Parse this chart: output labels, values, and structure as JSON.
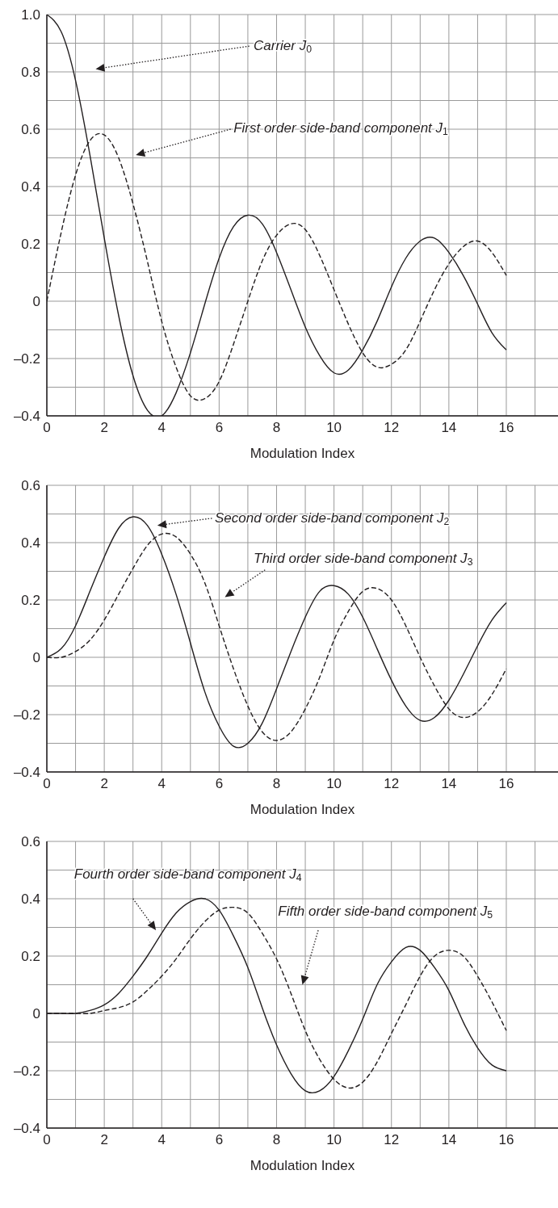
{
  "chart_data": [
    {
      "type": "line",
      "xlabel": "Modulation Index",
      "x": [
        0,
        0.5,
        1,
        1.5,
        2,
        2.5,
        3,
        3.5,
        4,
        4.5,
        5,
        5.5,
        6,
        6.5,
        7,
        7.5,
        8,
        8.5,
        9,
        9.5,
        10,
        10.5,
        11,
        11.5,
        12,
        12.5,
        13,
        13.5,
        14,
        14.5,
        15,
        15.5,
        16
      ],
      "series": [
        {
          "color": "#231f20",
          "line_style": "solid",
          "values": [
            1,
            0.94,
            0.77,
            0.51,
            0.22,
            -0.05,
            -0.26,
            -0.38,
            -0.4,
            -0.32,
            -0.18,
            -0.01,
            0.15,
            0.26,
            0.3,
            0.27,
            0.17,
            0.04,
            -0.09,
            -0.19,
            -0.25,
            -0.24,
            -0.17,
            -0.07,
            0.05,
            0.15,
            0.21,
            0.22,
            0.17,
            0.09,
            -0.01,
            -0.11,
            -0.17
          ]
        },
        {
          "color": "#231f20",
          "line_style": "dashed",
          "values": [
            0,
            0.24,
            0.44,
            0.56,
            0.58,
            0.5,
            0.34,
            0.14,
            -0.07,
            -0.23,
            -0.33,
            -0.34,
            -0.28,
            -0.15,
            0,
            0.14,
            0.23,
            0.27,
            0.25,
            0.16,
            0.04,
            -0.08,
            -0.18,
            -0.23,
            -0.22,
            -0.17,
            -0.07,
            0.04,
            0.13,
            0.19,
            0.21,
            0.17,
            0.09
          ]
        }
      ],
      "annotations": [
        "Carrier J$_{0}$",
        "First order side-band component J$_{1}$"
      ],
      "xlim": [
        0,
        17.8
      ],
      "xticks": [
        0,
        {
          "value": 1,
          "label": null
        },
        2,
        {
          "value": 3,
          "label": null
        },
        4,
        {
          "value": 5,
          "label": null
        },
        6,
        {
          "value": 7,
          "label": null
        },
        8,
        {
          "value": 9,
          "label": null
        },
        10,
        {
          "value": 11,
          "label": null
        },
        12,
        {
          "value": 13,
          "label": null
        },
        14,
        {
          "value": 15,
          "label": null
        },
        16,
        {
          "value": 17,
          "label": null
        }
      ],
      "ylim": [
        -0.4,
        1
      ],
      "yticks": [
        {
          "value": -0.4,
          "label": "–0.4"
        },
        {
          "value": -0.3,
          "label": null
        },
        {
          "value": -0.2,
          "label": "–0.2"
        },
        {
          "value": -0.1,
          "label": null
        },
        0,
        {
          "value": 0.1,
          "label": null
        },
        0.2,
        {
          "value": 0.3,
          "label": null
        },
        0.4,
        {
          "value": 0.5,
          "label": null
        },
        0.6,
        {
          "value": 0.7,
          "label": null
        },
        0.8,
        {
          "value": 0.9,
          "label": null
        },
        {
          "value": 1,
          "label": "1.0"
        }
      ],
      "grid": true
    },
    {
      "type": "line",
      "xlabel": "Modulation Index",
      "x": [
        0,
        0.5,
        1,
        1.5,
        2,
        2.5,
        3,
        3.5,
        4,
        4.5,
        5,
        5.5,
        6,
        6.5,
        7,
        7.5,
        8,
        8.5,
        9,
        9.5,
        10,
        10.5,
        11,
        11.5,
        12,
        12.5,
        13,
        13.5,
        14,
        14.5,
        15,
        15.5,
        16
      ],
      "series": [
        {
          "color": "#231f20",
          "line_style": "solid",
          "values": [
            0,
            0.03,
            0.11,
            0.23,
            0.35,
            0.45,
            0.49,
            0.46,
            0.36,
            0.22,
            0.05,
            -0.12,
            -0.24,
            -0.31,
            -0.3,
            -0.23,
            -0.11,
            0.02,
            0.14,
            0.23,
            0.25,
            0.22,
            0.14,
            0.03,
            -0.08,
            -0.17,
            -0.22,
            -0.21,
            -0.15,
            -0.06,
            0.04,
            0.13,
            0.19
          ]
        },
        {
          "color": "#231f20",
          "line_style": "dashed",
          "values": [
            0,
            0,
            0.02,
            0.06,
            0.13,
            0.22,
            0.31,
            0.39,
            0.43,
            0.42,
            0.36,
            0.26,
            0.11,
            -0.04,
            -0.17,
            -0.26,
            -0.29,
            -0.26,
            -0.18,
            -0.07,
            0.06,
            0.16,
            0.23,
            0.24,
            0.2,
            0.11,
            0,
            -0.1,
            -0.18,
            -0.21,
            -0.19,
            -0.13,
            -0.04
          ]
        }
      ],
      "annotations": [
        "Second order side-band component J$_{2}$",
        "Third order side-band component J$_{3}$"
      ],
      "xlim": [
        0,
        17.8
      ],
      "xticks": [
        0,
        {
          "value": 1,
          "label": null
        },
        2,
        {
          "value": 3,
          "label": null
        },
        4,
        {
          "value": 5,
          "label": null
        },
        6,
        {
          "value": 7,
          "label": null
        },
        8,
        {
          "value": 9,
          "label": null
        },
        10,
        {
          "value": 11,
          "label": null
        },
        12,
        {
          "value": 13,
          "label": null
        },
        14,
        {
          "value": 15,
          "label": null
        },
        16,
        {
          "value": 17,
          "label": null
        }
      ],
      "ylim": [
        -0.4,
        0.6
      ],
      "yticks": [
        {
          "value": -0.4,
          "label": "–0.4"
        },
        {
          "value": -0.3,
          "label": null
        },
        {
          "value": -0.2,
          "label": "–0.2"
        },
        {
          "value": -0.1,
          "label": null
        },
        0,
        {
          "value": 0.1,
          "label": null
        },
        0.2,
        {
          "value": 0.3,
          "label": null
        },
        0.4,
        {
          "value": 0.5,
          "label": null
        },
        0.6
      ],
      "grid": true
    },
    {
      "type": "line",
      "xlabel": "Modulation Index",
      "x": [
        0,
        0.5,
        1,
        1.5,
        2,
        2.5,
        3,
        3.5,
        4,
        4.5,
        5,
        5.5,
        6,
        6.5,
        7,
        7.5,
        8,
        8.5,
        9,
        9.5,
        10,
        10.5,
        11,
        11.5,
        12,
        12.5,
        13,
        13.5,
        14,
        14.5,
        15,
        15.5,
        16
      ],
      "series": [
        {
          "color": "#231f20",
          "line_style": "solid",
          "values": [
            0,
            0,
            0,
            0.01,
            0.03,
            0.07,
            0.13,
            0.2,
            0.28,
            0.35,
            0.39,
            0.4,
            0.36,
            0.27,
            0.16,
            0.02,
            -0.11,
            -0.21,
            -0.27,
            -0.27,
            -0.22,
            -0.13,
            -0.02,
            0.1,
            0.18,
            0.23,
            0.22,
            0.16,
            0.08,
            -0.03,
            -0.12,
            -0.18,
            -0.2
          ]
        },
        {
          "color": "#231f20",
          "line_style": "dashed",
          "values": [
            0,
            0,
            0,
            0,
            0.01,
            0.02,
            0.04,
            0.08,
            0.13,
            0.19,
            0.26,
            0.32,
            0.36,
            0.37,
            0.35,
            0.28,
            0.19,
            0.07,
            -0.06,
            -0.16,
            -0.23,
            -0.26,
            -0.24,
            -0.17,
            -0.07,
            0.03,
            0.13,
            0.2,
            0.22,
            0.2,
            0.13,
            0.04,
            -0.06
          ]
        }
      ],
      "annotations": [
        "Fourth order side-band component J$_{4}$",
        "Fifth order side-band component J$_{5}$"
      ],
      "xlim": [
        0,
        17.8
      ],
      "xticks": [
        0,
        {
          "value": 1,
          "label": null
        },
        2,
        {
          "value": 3,
          "label": null
        },
        4,
        {
          "value": 5,
          "label": null
        },
        6,
        {
          "value": 7,
          "label": null
        },
        8,
        {
          "value": 9,
          "label": null
        },
        10,
        {
          "value": 11,
          "label": null
        },
        12,
        {
          "value": 13,
          "label": null
        },
        14,
        {
          "value": 15,
          "label": null
        },
        16,
        {
          "value": 17,
          "label": null
        }
      ],
      "ylim": [
        -0.4,
        0.6
      ],
      "yticks": [
        {
          "value": -0.4,
          "label": "–0.4"
        },
        {
          "value": -0.3,
          "label": null
        },
        {
          "value": -0.2,
          "label": "–0.2"
        },
        {
          "value": -0.1,
          "label": null
        },
        0,
        {
          "value": 0.1,
          "label": null
        },
        0.2,
        {
          "value": 0.3,
          "label": null
        },
        0.4,
        {
          "value": 0.5,
          "label": null
        },
        0.6
      ],
      "grid": true
    }
  ]
}
